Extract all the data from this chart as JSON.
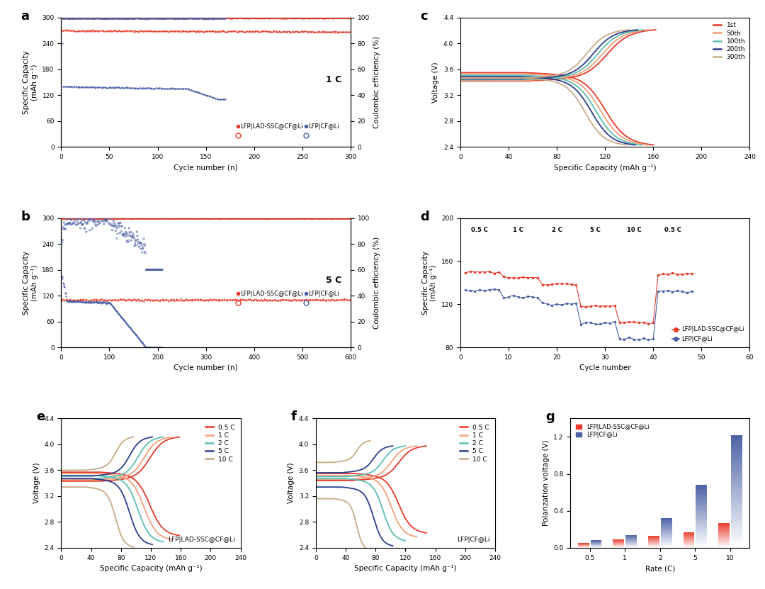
{
  "colors": {
    "red": "#E8392A",
    "red_light": "#F4A07A",
    "blue": "#4A5FA5",
    "blue_light": "#8FA8D4",
    "cyan": "#5BBFB5",
    "tan": "#C8AA88",
    "navy": "#2B3E8C"
  },
  "panel_a": {
    "red_discharge_level": 270,
    "red_ce_level": 99.5,
    "blue_discharge_start": 150,
    "blue_discharge_stable": 140,
    "blue_drop_cycle": 130,
    "blue_end_cycle": 170,
    "xlim": [
      0,
      300
    ],
    "ylim_left": [
      0,
      300
    ],
    "ylim_right": [
      0,
      100
    ],
    "xticks": [
      0,
      50,
      100,
      150,
      200,
      250,
      300
    ],
    "yticks_left": [
      0,
      60,
      120,
      180,
      240,
      300
    ],
    "yticks_right": [
      0,
      20,
      40,
      60,
      80,
      100
    ],
    "title": "1 C"
  },
  "panel_b": {
    "red_discharge_level": 110,
    "red_ce_level": 99.5,
    "blue_discharge_start": 110,
    "blue_drop_cycle": 100,
    "blue_end_cycle": 210,
    "xlim": [
      0,
      600
    ],
    "ylim_left": [
      0,
      300
    ],
    "ylim_right": [
      0,
      100
    ],
    "xticks": [
      0,
      100,
      200,
      300,
      400,
      500,
      600
    ],
    "yticks_left": [
      0,
      60,
      120,
      180,
      240,
      300
    ],
    "yticks_right": [
      0,
      20,
      40,
      60,
      80,
      100
    ],
    "title": "5 C"
  },
  "panel_c": {
    "cycles": [
      {
        "label": "1st",
        "color": "#E8392A",
        "cap_dis": 160,
        "cap_ch": 162,
        "v_mid_dis": 3.42,
        "v_mid_ch": 3.55
      },
      {
        "label": "50th",
        "color": "#F4A07A",
        "cap_dis": 155,
        "cap_ch": 157,
        "v_mid_dis": 3.4,
        "v_mid_ch": 3.56
      },
      {
        "label": "100th",
        "color": "#5BBFB5",
        "cap_dis": 150,
        "cap_ch": 152,
        "v_mid_dis": 3.38,
        "v_mid_ch": 3.57
      },
      {
        "label": "200th",
        "color": "#2B3E8C",
        "cap_dis": 145,
        "cap_ch": 147,
        "v_mid_dis": 3.36,
        "v_mid_ch": 3.58
      },
      {
        "label": "300th",
        "color": "#C8AA88",
        "cap_dis": 138,
        "cap_ch": 140,
        "v_mid_dis": 3.34,
        "v_mid_ch": 3.59
      }
    ],
    "xlim": [
      0,
      240
    ],
    "ylim": [
      2.4,
      4.3
    ],
    "xticks": [
      0,
      40,
      80,
      120,
      160,
      200,
      240
    ],
    "yticks": [
      2.4,
      2.8,
      3.2,
      3.6,
      4.0,
      4.4
    ]
  },
  "panel_d": {
    "red_caps": [
      150,
      145,
      138,
      118,
      103,
      148
    ],
    "blue_caps": [
      133,
      127,
      120,
      103,
      88,
      132
    ],
    "n_per_step": 8,
    "rate_labels": [
      "0.5 C",
      "1 C",
      "2 C",
      "5 C",
      "10 C",
      "0.5 C"
    ],
    "xlim": [
      0,
      60
    ],
    "ylim": [
      80,
      200
    ],
    "xticks": [
      0,
      10,
      20,
      30,
      40,
      50,
      60
    ],
    "yticks": [
      80,
      120,
      160,
      200
    ]
  },
  "panel_e": {
    "rates": [
      {
        "label": "0.5 C",
        "color": "#E8392A",
        "cap": 158,
        "v_dis": 3.45,
        "v_ch": 3.55,
        "v_dis_end": 2.58,
        "v_ch_end": 4.12
      },
      {
        "label": "1 C",
        "color": "#F4A07A",
        "cap": 148,
        "v_dis": 3.43,
        "v_ch": 3.57,
        "v_dis_end": 2.52,
        "v_ch_end": 4.12
      },
      {
        "label": "2 C",
        "color": "#5BBFB5",
        "cap": 137,
        "v_dis": 3.4,
        "v_ch": 3.59,
        "v_dis_end": 2.48,
        "v_ch_end": 4.12
      },
      {
        "label": "5 C",
        "color": "#2B3E8C",
        "cap": 122,
        "v_dis": 3.35,
        "v_ch": 3.63,
        "v_dis_end": 2.44,
        "v_ch_end": 4.12
      },
      {
        "label": "10 C",
        "color": "#C8AA88",
        "cap": 97,
        "v_dis": 3.22,
        "v_ch": 3.72,
        "v_dis_end": 2.4,
        "v_ch_end": 4.12
      }
    ],
    "label": "LFP|LAD-SSC@CF@Li",
    "xlim": [
      0,
      240
    ],
    "ylim": [
      2.4,
      4.4
    ],
    "xticks": [
      0,
      40,
      80,
      120,
      160,
      200,
      240
    ],
    "yticks": [
      2.4,
      2.8,
      3.2,
      3.6,
      4.0,
      4.4
    ]
  },
  "panel_f": {
    "rates": [
      {
        "label": "0.5 C",
        "color": "#E8392A",
        "cap": 148,
        "v_dis": 3.43,
        "v_ch": 3.56,
        "v_dis_end": 2.62,
        "v_ch_end": 3.98
      },
      {
        "label": "1 C",
        "color": "#F4A07A",
        "cap": 135,
        "v_dis": 3.4,
        "v_ch": 3.58,
        "v_dis_end": 2.56,
        "v_ch_end": 3.98
      },
      {
        "label": "2 C",
        "color": "#5BBFB5",
        "cap": 120,
        "v_dis": 3.35,
        "v_ch": 3.62,
        "v_dis_end": 2.5,
        "v_ch_end": 3.98
      },
      {
        "label": "5 C",
        "color": "#2B3E8C",
        "cap": 103,
        "v_dis": 3.22,
        "v_ch": 3.68,
        "v_dis_end": 2.42,
        "v_ch_end": 3.98
      },
      {
        "label": "10 C",
        "color": "#C8AA88",
        "cap": 73,
        "v_dis": 3.04,
        "v_ch": 3.84,
        "v_dis_end": 2.35,
        "v_ch_end": 4.06
      }
    ],
    "label": "LFP|CF@Li",
    "xlim": [
      0,
      240
    ],
    "ylim": [
      2.4,
      4.4
    ],
    "xticks": [
      0,
      40,
      80,
      120,
      160,
      200,
      240
    ],
    "yticks": [
      2.4,
      2.8,
      3.2,
      3.6,
      4.0,
      4.4
    ]
  },
  "panel_g": {
    "rates": [
      "0.5",
      "1",
      "2",
      "5",
      "10"
    ],
    "red_values": [
      0.05,
      0.09,
      0.13,
      0.17,
      0.27
    ],
    "blue_values": [
      0.08,
      0.14,
      0.32,
      0.68,
      1.22
    ],
    "ylim": [
      0,
      1.4
    ],
    "yticks": [
      0.0,
      0.4,
      0.8,
      1.2
    ]
  }
}
